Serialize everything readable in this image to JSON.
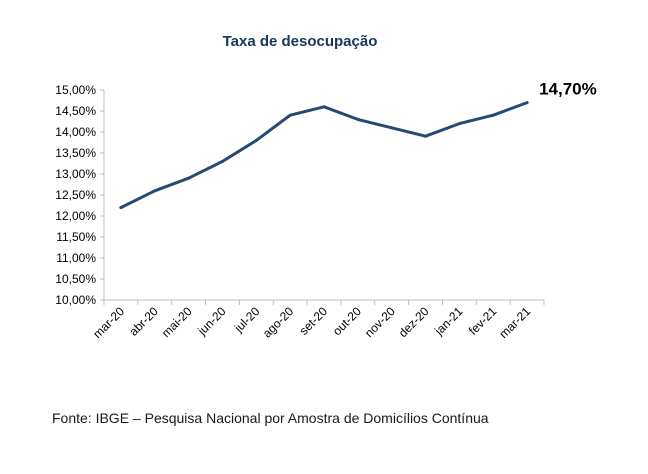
{
  "chart_data": {
    "type": "line",
    "title": "Taxa de desocupação",
    "xlabel": "",
    "ylabel": "",
    "categories": [
      "mar-20",
      "abr-20",
      "mai-20",
      "jun-20",
      "jul-20",
      "ago-20",
      "set-20",
      "out-20",
      "nov-20",
      "dez-20",
      "jan-21",
      "fev-21",
      "mar-21"
    ],
    "series": [
      {
        "values": [
          12.2,
          12.6,
          12.9,
          13.3,
          13.8,
          14.4,
          14.6,
          14.3,
          14.1,
          13.9,
          14.2,
          14.4,
          14.7
        ]
      }
    ],
    "ylim": [
      10,
      15
    ],
    "yticks": [
      "10,00%",
      "10,50%",
      "11,00%",
      "11,50%",
      "12,00%",
      "12,50%",
      "13,00%",
      "13,50%",
      "14,00%",
      "14,50%",
      "15,00%"
    ],
    "end_label": "14,70%",
    "grid": false,
    "line_color": "#254a73"
  },
  "source": "Fonte: IBGE – Pesquisa Nacional por Amostra de Domicílios Contínua"
}
